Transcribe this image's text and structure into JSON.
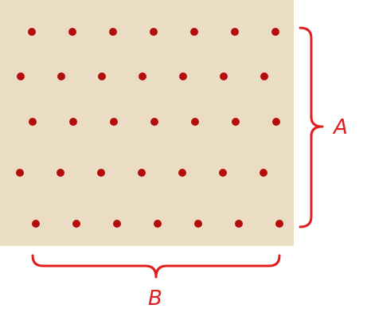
{
  "colors": {
    "panel": "#EBDDC4",
    "dot": "#B30D0D",
    "bracket": "#E01E1E",
    "label": "#E01E1E"
  },
  "grid": {
    "rows": [
      {
        "count": 7
      },
      {
        "count": 7
      },
      {
        "count": 7
      },
      {
        "count": 7
      },
      {
        "count": 7
      }
    ]
  },
  "labels": {
    "vertical": "A",
    "horizontal": "B"
  }
}
